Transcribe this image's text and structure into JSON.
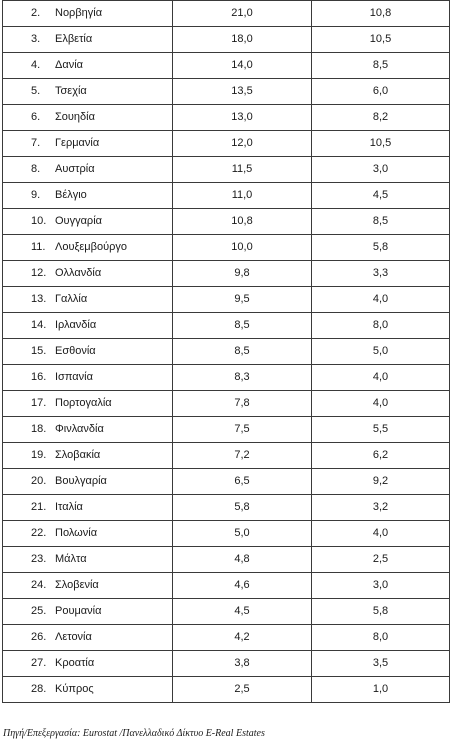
{
  "table": {
    "rows": [
      {
        "rank": "2.",
        "country": "Νορβηγία",
        "v1": "21,0",
        "v2": "10,8"
      },
      {
        "rank": "3.",
        "country": "Ελβετία",
        "v1": "18,0",
        "v2": "10,5"
      },
      {
        "rank": "4.",
        "country": "Δανία",
        "v1": "14,0",
        "v2": "8,5"
      },
      {
        "rank": "5.",
        "country": "Τσεχία",
        "v1": "13,5",
        "v2": "6,0"
      },
      {
        "rank": "6.",
        "country": "Σουηδία",
        "v1": "13,0",
        "v2": "8,2"
      },
      {
        "rank": "7.",
        "country": "Γερμανία",
        "v1": "12,0",
        "v2": "10,5"
      },
      {
        "rank": "8.",
        "country": "Αυστρία",
        "v1": "11,5",
        "v2": "3,0"
      },
      {
        "rank": "9.",
        "country": "Βέλγιο",
        "v1": "11,0",
        "v2": "4,5"
      },
      {
        "rank": "10.",
        "country": "Ουγγαρία",
        "v1": "10,8",
        "v2": "8,5"
      },
      {
        "rank": "11.",
        "country": "Λουξεμβούργο",
        "v1": "10,0",
        "v2": "5,8"
      },
      {
        "rank": "12.",
        "country": "Ολλανδία",
        "v1": "9,8",
        "v2": "3,3"
      },
      {
        "rank": "13.",
        "country": "Γαλλία",
        "v1": "9,5",
        "v2": "4,0"
      },
      {
        "rank": "14.",
        "country": "Ιρλανδία",
        "v1": "8,5",
        "v2": "8,0"
      },
      {
        "rank": "15.",
        "country": "Εσθονία",
        "v1": "8,5",
        "v2": "5,0"
      },
      {
        "rank": "16.",
        "country": "Ισπανία",
        "v1": "8,3",
        "v2": "4,0"
      },
      {
        "rank": "17.",
        "country": "Πορτογαλία",
        "v1": "7,8",
        "v2": "4,0"
      },
      {
        "rank": "18.",
        "country": "Φινλανδία",
        "v1": "7,5",
        "v2": "5,5"
      },
      {
        "rank": "19.",
        "country": "Σλοβακία",
        "v1": "7,2",
        "v2": "6,2"
      },
      {
        "rank": "20.",
        "country": "Βουλγαρία",
        "v1": "6,5",
        "v2": "9,2"
      },
      {
        "rank": "21.",
        "country": "Ιταλία",
        "v1": "5,8",
        "v2": "3,2"
      },
      {
        "rank": "22.",
        "country": "Πολωνία",
        "v1": "5,0",
        "v2": "4,0"
      },
      {
        "rank": "23.",
        "country": "Μάλτα",
        "v1": "4,8",
        "v2": "2,5"
      },
      {
        "rank": "24.",
        "country": "Σλοβενία",
        "v1": "4,6",
        "v2": "3,0"
      },
      {
        "rank": "25.",
        "country": "Ρουμανία",
        "v1": "4,5",
        "v2": "5,8"
      },
      {
        "rank": "26.",
        "country": "Λετονία",
        "v1": "4,2",
        "v2": "8,0"
      },
      {
        "rank": "27.",
        "country": "Κροατία",
        "v1": "3,8",
        "v2": "3,5"
      },
      {
        "rank": "28.",
        "country": "Κύπρος",
        "v1": "2,5",
        "v2": "1,0"
      }
    ]
  },
  "footer": {
    "source": "Πηγή/Επεξεργασία: Eurostat /Πανελλαδικό Δίκτυο E-Real Estates"
  }
}
